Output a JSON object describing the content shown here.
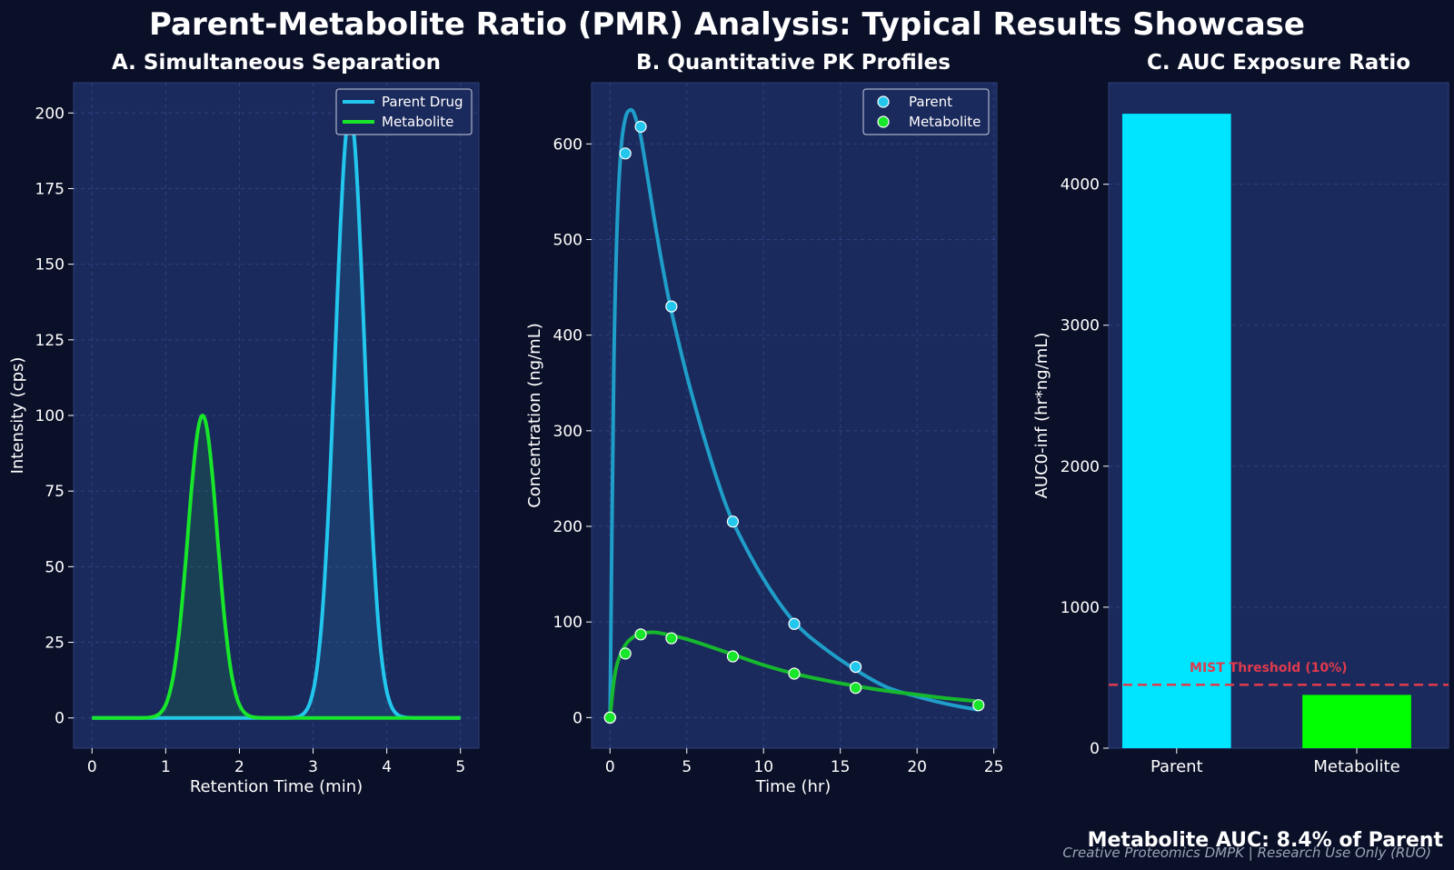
{
  "page": {
    "title": "Parent-Metabolite Ratio (PMR) Analysis: Typical Results Showcase",
    "summary": "Metabolite AUC: 8.4% of Parent",
    "footer": "Creative Proteomics DMPK | Research Use Only (RUO)"
  },
  "colors": {
    "background": "#0b1029",
    "plot_bg": "#1b2a5c",
    "parent": "#23c7ee",
    "parent_line_b": "#1f9ec9",
    "metabolite": "#18e62a",
    "metabolite_line_b": "#16b92e",
    "bar_parent": "#00e5ff",
    "bar_metabolite": "#00ff00",
    "threshold": "#e03a4c"
  },
  "chart_data": [
    {
      "type": "line",
      "title": "A. Simultaneous Separation",
      "xlabel": "Retention Time (min)",
      "ylabel": "Intensity (cps)",
      "xlim": [
        -0.25,
        5.25
      ],
      "ylim": [
        -10,
        210
      ],
      "xticks": [
        0,
        1,
        2,
        3,
        4,
        5
      ],
      "yticks": [
        0,
        25,
        50,
        75,
        100,
        125,
        150,
        175,
        200
      ],
      "legend": "top-right",
      "series": [
        {
          "name": "Parent Drug",
          "peak_center": 3.5,
          "peak_height": 200,
          "peak_sigma": 0.2
        },
        {
          "name": "Metabolite",
          "peak_center": 1.5,
          "peak_height": 100,
          "peak_sigma": 0.2
        }
      ]
    },
    {
      "type": "scatter",
      "title": "B. Quantitative PK Profiles",
      "xlabel": "Time (hr)",
      "ylabel": "Concentration (ng/mL)",
      "xlim": [
        -1.2,
        25.2
      ],
      "ylim": [
        -32,
        664
      ],
      "xticks": [
        0,
        5,
        10,
        15,
        20,
        25
      ],
      "yticks": [
        0,
        100,
        200,
        300,
        400,
        500,
        600
      ],
      "legend": "top-right",
      "series": [
        {
          "name": "Parent",
          "x": [
            0,
            1,
            2,
            4,
            8,
            12,
            16
          ],
          "y": [
            0,
            590,
            618,
            430,
            205,
            98,
            53
          ],
          "fit": {
            "t": [
              0,
              0.25,
              0.5,
              0.75,
              1,
              1.25,
              1.5,
              1.75,
              2,
              2.5,
              3,
              3.5,
              4,
              5,
              6,
              7,
              8,
              10,
              12,
              14,
              16,
              18,
              20,
              22,
              24
            ],
            "c": [
              0,
              370,
              530,
              600,
              627,
              635,
              634,
              623,
              608,
              560,
              510,
              465,
              425,
              358,
              300,
              248,
              205,
              145,
              100,
              72,
              50,
              32,
              22,
              14,
              8
            ]
          }
        },
        {
          "name": "Metabolite",
          "x": [
            0,
            1,
            2,
            4,
            8,
            12,
            16,
            24
          ],
          "y": [
            0,
            67,
            87,
            83,
            64,
            46,
            31,
            13
          ],
          "fit": {
            "t": [
              0,
              0.25,
              0.5,
              1,
              1.5,
              2,
              2.5,
              3,
              4,
              5,
              6,
              8,
              10,
              12,
              14,
              16,
              18,
              20,
              22,
              24
            ],
            "c": [
              0,
              38,
              58,
              76,
              84,
              88,
              89,
              89,
              86,
              82,
              77,
              66,
              55,
              46,
              39,
              33,
              28,
              24,
              20,
              17
            ]
          }
        }
      ]
    },
    {
      "type": "bar",
      "title": "C. AUC Exposure Ratio",
      "ylabel": "AUC0-inf (hr*ng/mL)",
      "ylim": [
        0,
        4720
      ],
      "yticks": [
        0,
        1000,
        2000,
        3000,
        4000
      ],
      "categories": [
        "Parent",
        "Metabolite"
      ],
      "values": [
        4500,
        378
      ],
      "threshold": {
        "label": "MIST Threshold (10%)",
        "value": 450
      }
    }
  ]
}
